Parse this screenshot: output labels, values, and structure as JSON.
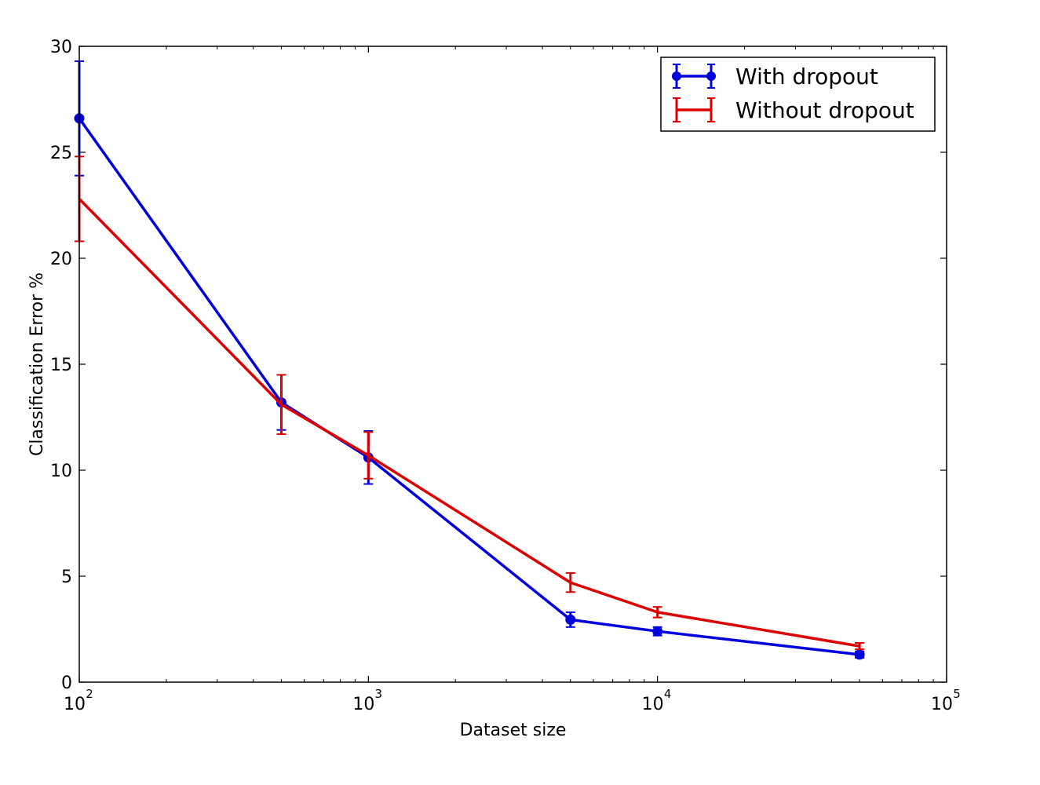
{
  "chart_data": {
    "type": "line",
    "xlabel": "Dataset size",
    "ylabel": "Classification Error %",
    "xscale": "log",
    "xlim": [
      100,
      100000
    ],
    "ylim": [
      0,
      30
    ],
    "grid": false,
    "legend_position": "top-right",
    "x_tick_bases": [
      "10",
      "10",
      "10",
      "10"
    ],
    "x_tick_exponents": [
      "2",
      "3",
      "4",
      "5"
    ],
    "x_tick_values": [
      100,
      1000,
      10000,
      100000
    ],
    "y_ticks": [
      0,
      5,
      10,
      15,
      20,
      25,
      30
    ],
    "y_tick_labels": [
      "0",
      "5",
      "10",
      "15",
      "20",
      "25",
      "30"
    ],
    "x": [
      100,
      500,
      1000,
      5000,
      10000,
      50000
    ],
    "series": [
      {
        "name": "With dropout",
        "color": "#0000dd",
        "marker": "circle",
        "values": [
          26.6,
          13.2,
          10.6,
          2.95,
          2.4,
          1.3
        ],
        "error": [
          2.7,
          1.3,
          1.25,
          0.35,
          0.2,
          0.15
        ]
      },
      {
        "name": "Without dropout",
        "color": "#dd0000",
        "marker": "none",
        "values": [
          22.8,
          13.1,
          10.7,
          4.7,
          3.3,
          1.7
        ],
        "error": [
          2.0,
          1.4,
          1.1,
          0.45,
          0.25,
          0.15
        ]
      }
    ]
  }
}
